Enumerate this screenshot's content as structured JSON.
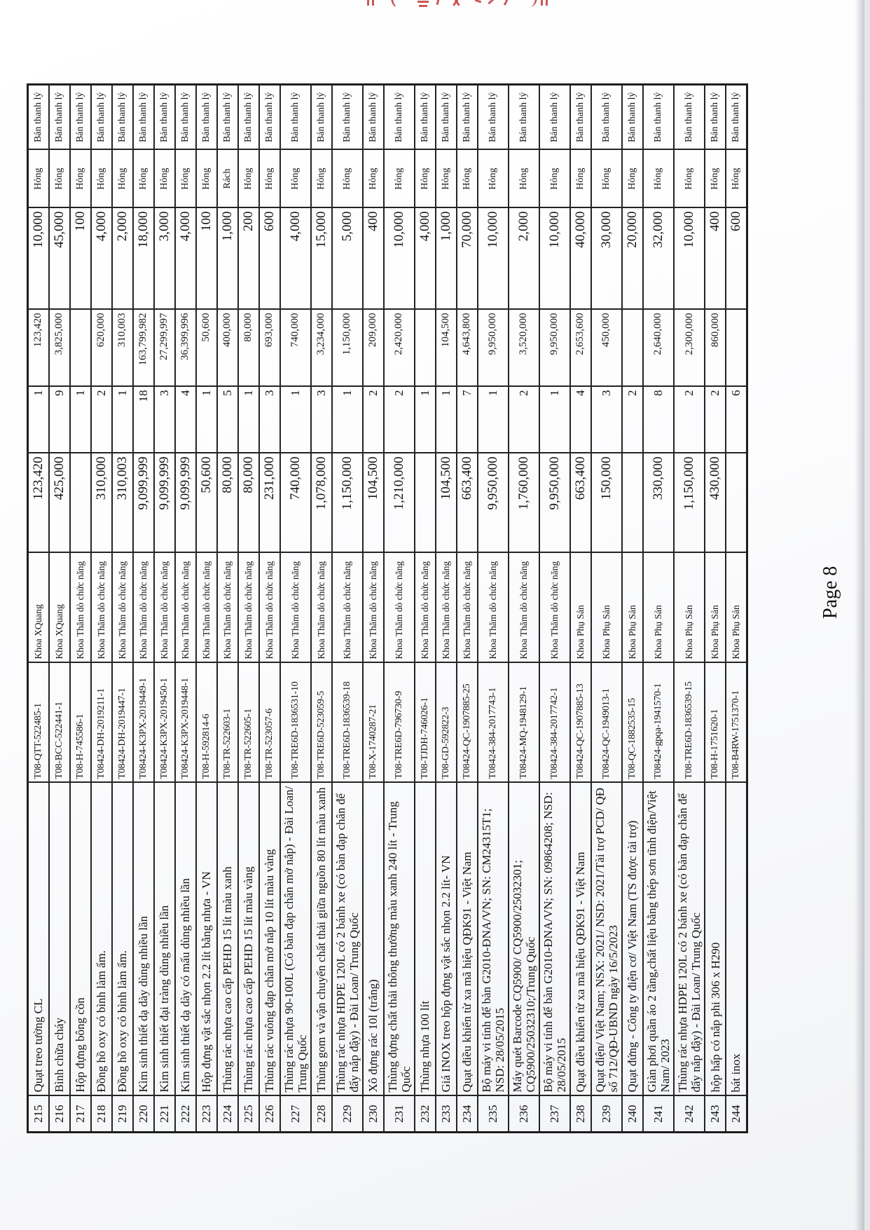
{
  "footer": {
    "page_label": "Page 8"
  },
  "stamp": {
    "color": "#c54545",
    "description": "red-stamp-fragment-cut-at-top-edge"
  },
  "table": {
    "records": [
      {
        "stt": "215",
        "name": "Quạt  treo tường  CL",
        "code": "T08-QTT-522485-1",
        "dept": "Khoa XQuang",
        "unit_price": "123,420",
        "qty": "1",
        "total": "123,420",
        "residual": "10,000",
        "condition": "Hỏng",
        "proposal": "Bán thanh lý"
      },
      {
        "stt": "216",
        "name": "Bình chữa cháy",
        "code": "T08-BCC-522441-1",
        "dept": "Khoa XQuang",
        "unit_price": "425,000",
        "qty": "9",
        "total": "3,825,000",
        "residual": "45,000",
        "condition": "Hỏng",
        "proposal": "Bán thanh lý"
      },
      {
        "stt": "217",
        "name": "Hộp đựng bông cồn",
        "code": "T08-H-745586-1",
        "dept": "Khoa Thăm dò chức năng",
        "unit_price": "",
        "qty": "1",
        "total": "",
        "residual": "100",
        "condition": "Hỏng",
        "proposal": "Bán thanh lý"
      },
      {
        "stt": "218",
        "name": "Đồng hồ oxy có bình làm ẩm.",
        "code": "T08424-DH-2019211-1",
        "dept": "Khoa Thăm dò chức năng",
        "unit_price": "310,000",
        "qty": "2",
        "total": "620,000",
        "residual": "4,000",
        "condition": "Hỏng",
        "proposal": "Bán thanh lý"
      },
      {
        "stt": "219",
        "name": "Đồng hồ oxy có bình làm ẩm.",
        "code": "T08424-DH-2019447-1",
        "dept": "Khoa Thăm dò chức năng",
        "unit_price": "310,003",
        "qty": "1",
        "total": "310,003",
        "residual": "2,000",
        "condition": "Hỏng",
        "proposal": "Bán thanh lý"
      },
      {
        "stt": "220",
        "name": "Kìm sinh thiết dạ dày dùng nhiều lần",
        "code": "T08424-K3PX-2019449-1",
        "dept": "Khoa Thăm dò chức năng",
        "unit_price": "9,099,999",
        "qty": "18",
        "total": "163,799,982",
        "residual": "18,000",
        "condition": "Hỏng",
        "proposal": "Bán thanh lý"
      },
      {
        "stt": "221",
        "name": "Kìm sinh thiết đại tràng dùng nhiều lần",
        "code": "T08424-K3PX-2019450-1",
        "dept": "Khoa Thăm dò chức năng",
        "unit_price": "9,099,999",
        "qty": "3",
        "total": "27,299,997",
        "residual": "3,000",
        "condition": "Hỏng",
        "proposal": "Bán thanh lý"
      },
      {
        "stt": "222",
        "name": "Kìm sinh thiết dạ dày có mấu dùng nhiều lần",
        "code": "T08424-K3PX-2019448-1",
        "dept": "Khoa Thăm dò chức năng",
        "unit_price": "9,099,999",
        "qty": "4",
        "total": "36,399,996",
        "residual": "4,000",
        "condition": "Hỏng",
        "proposal": "Bán thanh lý"
      },
      {
        "stt": "223",
        "name": "Hộp đựng vật sắc nhọn 2.2 lít bằng nhựa - VN",
        "code": "T08-H-592814-6",
        "dept": "Khoa Thăm dò chức năng",
        "unit_price": "50,600",
        "qty": "1",
        "total": "50,600",
        "residual": "100",
        "condition": "Hỏng",
        "proposal": "Bán thanh lý"
      },
      {
        "stt": "224",
        "name": "Thùng rác nhựa cao cấp PEHD 15 lít màu xanh",
        "code": "T08-TR-522603-1",
        "dept": "Khoa Thăm dò chức năng",
        "unit_price": "80,000",
        "qty": "5",
        "total": "400,000",
        "residual": "1,000",
        "condition": "Rách",
        "proposal": "Bán thanh lý"
      },
      {
        "stt": "225",
        "name": "Thùng rác nhựa cao cấp PEHD 15 lít màu vàng",
        "code": "T08-TR-522605-1",
        "dept": "Khoa Thăm dò chức năng",
        "unit_price": "80,000",
        "qty": "1",
        "total": "80,000",
        "residual": "200",
        "condition": "Hỏng",
        "proposal": "Bán thanh lý"
      },
      {
        "stt": "226",
        "name": "Thùng rác vuông đạp chân mở nắp 10 lít màu vàng",
        "code": "T08-TR-523057-6",
        "dept": "Khoa Thăm dò chức năng",
        "unit_price": "231,000",
        "qty": "3",
        "total": "693,000",
        "residual": "600",
        "condition": "Hỏng",
        "proposal": "Bán thanh lý"
      },
      {
        "stt": "227",
        "name": "Thùng rác nhựa 90-100L (Có bàn đạp chân mở nắp) - Đài Loan/ Trung Quốc",
        "code": "T08-TRE6D-1836531-10",
        "dept": "Khoa Thăm dò chức năng",
        "unit_price": "740,000",
        "qty": "1",
        "total": "740,000",
        "residual": "4,000",
        "condition": "Hỏng",
        "proposal": "Bán thanh lý"
      },
      {
        "stt": "228",
        "name": "Thùng gom và vận chuyển chất thải giữa nguồn 80 lít màu xanh",
        "code": "T08-TRE6D-523059-5",
        "dept": "Khoa Thăm dò chức năng",
        "unit_price": "1,078,000",
        "qty": "3",
        "total": "3,234,000",
        "residual": "15,000",
        "condition": "Hỏng",
        "proposal": "Bán thanh lý"
      },
      {
        "stt": "229",
        "name": "Thùng rác nhựa HDPE 120L có 2 bánh xe (có bàn đạp chân để đẩy nắp đậy) - Đài Loan/ Trung Quốc",
        "code": "T08-TRE6D-1836539-18",
        "dept": "Khoa Thăm dò chức năng",
        "unit_price": "1,150,000",
        "qty": "1",
        "total": "1,150,000",
        "residual": "5,000",
        "condition": "Hỏng",
        "proposal": "Bán thanh lý"
      },
      {
        "stt": "230",
        "name": "Xô đựng rác 10l (trắng)",
        "code": "T08-X-1740287-21",
        "dept": "Khoa Thăm dò chức năng",
        "unit_price": "104,500",
        "qty": "2",
        "total": "209,000",
        "residual": "400",
        "condition": "Hỏng",
        "proposal": "Bán thanh lý"
      },
      {
        "stt": "231",
        "name": "Thùng đựng chất thải thông thường màu xanh 240 lít - Trung Quốc",
        "code": "T08-TRE6D-796730-9",
        "dept": "Khoa Thăm dò chức năng",
        "unit_price": "1,210,000",
        "qty": "2",
        "total": "2,420,000",
        "residual": "10,000",
        "condition": "Hỏng",
        "proposal": "Bán thanh lý"
      },
      {
        "stt": "232",
        "name": "Thùng nhựa 100 lít",
        "code": "T08-TJDH-746026-1",
        "dept": "Khoa Thăm dò chức năng",
        "unit_price": "",
        "qty": "1",
        "total": "",
        "residual": "4,000",
        "condition": "Hỏng",
        "proposal": "Bán thanh lý"
      },
      {
        "stt": "233",
        "name": "Giá INOX treo hộp đựng vật sắc nhọn 2.2 lít- VN",
        "code": "T08-GD-592822-3",
        "dept": "Khoa Thăm dò chức năng",
        "unit_price": "104,500",
        "qty": "1",
        "total": "104,500",
        "residual": "1,000",
        "condition": "Hỏng",
        "proposal": "Bán thanh lý"
      },
      {
        "stt": "234",
        "name": "Quạt điều khiển từ xa mã hiệu QĐK91 - Việt Nam",
        "code": "T08424-QC-1907885-25",
        "dept": "Khoa Thăm dò chức năng",
        "unit_price": "663,400",
        "qty": "7",
        "total": "4,643,800",
        "residual": "70,000",
        "condition": "Hỏng",
        "proposal": "Bán thanh lý"
      },
      {
        "stt": "235",
        "name": "Bộ máy vi tính để bàn G2010-ĐNA/VN; SN: CM24315T1; NSD: 28/05/2015",
        "code": "T08424-384-2017743-1",
        "dept": "Khoa Thăm dò chức năng",
        "unit_price": "9,950,000",
        "qty": "1",
        "total": "9,950,000",
        "residual": "10,000",
        "condition": "Hỏng",
        "proposal": "Bán thanh lý"
      },
      {
        "stt": "236",
        "name": "Máy quét Barcode CQ5900/ CQ5900/25032301; CQ5900/25032310;/Trung Quốc",
        "code": "T08424-MQ-1948129-1",
        "dept": "Khoa Thăm dò chức năng",
        "unit_price": "1,760,000",
        "qty": "2",
        "total": "3,520,000",
        "residual": "2,000",
        "condition": "Hỏng",
        "proposal": "Bán thanh lý"
      },
      {
        "stt": "237",
        "name": "Bộ máy vi tính để bàn G2010-ĐNA/VN; SN: 09864208; NSD: 28/05/2015",
        "code": "T08424-384-2017742-1",
        "dept": "Khoa Thăm dò chức năng",
        "unit_price": "9,950,000",
        "qty": "1",
        "total": "9,950,000",
        "residual": "10,000",
        "condition": "Hỏng",
        "proposal": "Bán thanh lý"
      },
      {
        "stt": "238",
        "name": "Quạt điều khiển từ xa mã hiệu QĐK91 - Việt Nam",
        "code": "T08424-QC-1907885-13",
        "dept": "Khoa Phụ Sản",
        "unit_price": "663,400",
        "qty": "4",
        "total": "2,653,600",
        "residual": "40,000",
        "condition": "Hỏng",
        "proposal": "Bán thanh lý"
      },
      {
        "stt": "239",
        "name": "Quạt điện/ Việt Nam; NSX: 2021/ NSD: 2021/Tài trợ PCD/ QĐ số 712/QĐ-UBND ngày 16/5/2023",
        "code": "T08424-QC-1949013-1",
        "dept": "Khoa Phụ Sản",
        "unit_price": "150,000",
        "qty": "3",
        "total": "450,000",
        "residual": "30,000",
        "condition": "Hỏng",
        "proposal": "Bán thanh lý"
      },
      {
        "stt": "240",
        "name": "Quạt đứng - Công ty điện cơ/ Việt Nam (TS được tài trợ)",
        "code": "T08-QC-1882535-15",
        "dept": "Khoa Phụ Sản",
        "unit_price": "",
        "qty": "2",
        "total": "",
        "residual": "20,000",
        "condition": "Hỏng",
        "proposal": "Bán thanh lý"
      },
      {
        "stt": "241",
        "name": "Giàn phơi quần áo 2 tầng,chất liệu bằng thép sơn tĩnh điện/Việt Nam/ 2023",
        "code": "T08424-gpqa-1941570-1",
        "dept": "Khoa Phụ Sản",
        "unit_price": "330,000",
        "qty": "8",
        "total": "2,640,000",
        "residual": "32,000",
        "condition": "Hỏng",
        "proposal": "Bán thanh lý"
      },
      {
        "stt": "242",
        "name": "Thùng rác nhựa HDPE 120L có 2 bánh xe (có bàn đạp chân để đẩy nắp đậy) - Đài Loan/ Trung Quốc",
        "code": "T08-TRE6D-1836539-15",
        "dept": "Khoa Phụ Sản",
        "unit_price": "1,150,000",
        "qty": "2",
        "total": "2,300,000",
        "residual": "10,000",
        "condition": "Hỏng",
        "proposal": "Bán thanh lý"
      },
      {
        "stt": "243",
        "name": "hộp hấp có nắp  phi 306 x H290",
        "code": "T08-H-1751620-1",
        "dept": "Khoa Phụ Sản",
        "unit_price": "430,000",
        "qty": "2",
        "total": "860,000",
        "residual": "400",
        "condition": "Hỏng",
        "proposal": "Bán thanh lý"
      },
      {
        "stt": "244",
        "name": "bát inox",
        "code": "T08-B4RW-1751370-1",
        "dept": "Khoa Phụ Sản",
        "unit_price": "",
        "qty": "6",
        "total": "",
        "residual": "600",
        "condition": "Hỏng",
        "proposal": "Bán thanh lý"
      }
    ]
  }
}
